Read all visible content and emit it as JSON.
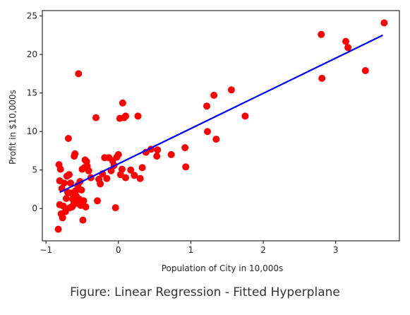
{
  "caption": "Figure: Linear Regression - Fitted Hyperplane",
  "chart_data": {
    "type": "scatter",
    "xlabel": "Population of City in 10,000s",
    "ylabel": "Profit in $10,000s",
    "xlim": [
      -1.05,
      3.88
    ],
    "ylim": [
      -4.2,
      25.7
    ],
    "x_ticks": [
      -1,
      0,
      1,
      2,
      3
    ],
    "y_ticks": [
      0,
      5,
      10,
      15,
      20,
      25
    ],
    "x_tick_labels": [
      "−1",
      "0",
      "1",
      "2",
      "3"
    ],
    "y_tick_labels": [
      "0",
      "5",
      "10",
      "15",
      "20",
      "25"
    ],
    "grid": false,
    "legend": "none",
    "colors": {
      "points": "#ff0000",
      "line": "#0000ff",
      "axes": "#000000"
    },
    "series": [
      {
        "type": "scatter",
        "x": [
          -0.83,
          -0.82,
          -0.81,
          -0.81,
          -0.8,
          -0.79,
          -0.78,
          -0.77,
          -0.76,
          -0.75,
          -0.73,
          -0.72,
          -0.71,
          -0.7,
          -0.69,
          -0.68,
          -0.67,
          -0.66,
          -0.65,
          -0.64,
          -0.63,
          -0.62,
          -0.61,
          -0.6,
          -0.59,
          -0.58,
          -0.57,
          -0.56,
          -0.55,
          -0.54,
          -0.53,
          -0.52,
          -0.51,
          -0.5,
          -0.49,
          -0.48,
          -0.47,
          -0.46,
          -0.45,
          -0.44,
          -0.43,
          -0.41,
          -0.38,
          -0.31,
          -0.29,
          -0.27,
          -0.25,
          -0.22,
          -0.19,
          -0.16,
          -0.13,
          -0.1,
          -0.08,
          -0.06,
          -0.04,
          -0.02,
          0.0,
          0.02,
          0.03,
          0.05,
          0.06,
          0.08,
          0.1,
          0.1,
          0.17,
          0.22,
          0.27,
          0.3,
          0.33,
          0.38,
          0.45,
          0.53,
          0.54,
          0.73,
          0.92,
          0.93,
          1.22,
          1.23,
          1.32,
          1.35,
          1.56,
          1.75,
          2.8,
          2.81,
          3.14,
          3.17,
          3.41,
          3.67
        ],
        "y": [
          -2.7,
          5.7,
          3.6,
          0.5,
          5.1,
          -0.7,
          2.6,
          -1.2,
          0.3,
          3.3,
          -0.4,
          1.3,
          4.2,
          2.1,
          9.1,
          4.4,
          0.1,
          3.3,
          2.0,
          0.2,
          1.2,
          0.5,
          6.8,
          7.1,
          2.3,
          1.6,
          0.7,
          3.0,
          17.5,
          1.2,
          3.5,
          0.4,
          2.4,
          5.1,
          -1.5,
          1.0,
          5.3,
          6.3,
          0.2,
          6.1,
          5.5,
          4.9,
          4.0,
          11.8,
          1.0,
          3.8,
          3.2,
          4.5,
          6.6,
          3.9,
          6.6,
          4.9,
          6.2,
          5.6,
          0.1,
          6.7,
          7.0,
          11.7,
          4.4,
          5.1,
          13.7,
          11.8,
          12.0,
          4.0,
          5.0,
          4.3,
          12.0,
          3.9,
          5.3,
          7.3,
          7.7,
          6.8,
          7.6,
          7.0,
          7.9,
          5.4,
          13.3,
          10.0,
          14.7,
          9.0,
          15.4,
          12.0,
          22.6,
          16.9,
          21.7,
          20.9,
          17.9,
          24.1
        ]
      },
      {
        "type": "line",
        "x": [
          -0.81,
          3.65
        ],
        "y": [
          2.1,
          22.5
        ]
      }
    ]
  }
}
